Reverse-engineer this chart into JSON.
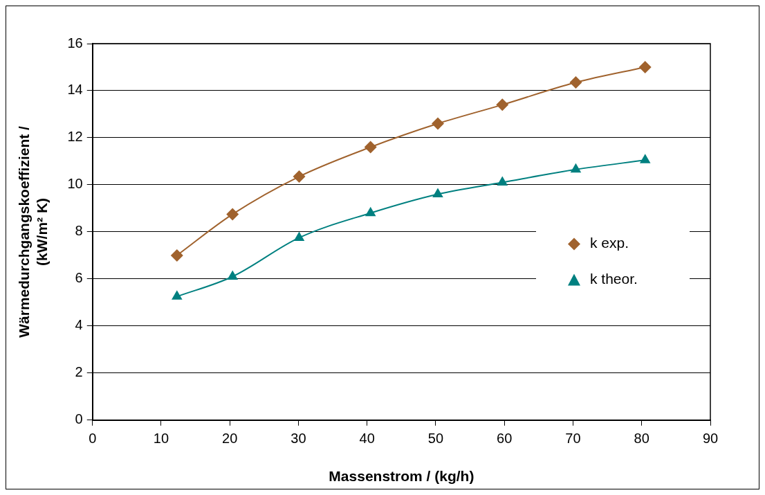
{
  "chart_data": {
    "type": "line",
    "xlabel": "Massenstrom / (kg/h)",
    "ylabel": "Wärmedurchgangskoeffizient / (kW/m² K)",
    "x": [
      12.3,
      20.4,
      30.1,
      40.5,
      50.3,
      59.7,
      70.4,
      80.5
    ],
    "series": [
      {
        "name": "k exp.",
        "color": "#a0622d",
        "marker": "diamond",
        "values": [
          7.0,
          8.75,
          10.35,
          11.6,
          12.6,
          13.4,
          14.35,
          15.0
        ]
      },
      {
        "name": "k theor.",
        "color": "#008080",
        "marker": "triangle",
        "values": [
          5.25,
          6.1,
          7.75,
          8.8,
          9.6,
          10.1,
          10.65,
          11.05
        ]
      }
    ],
    "xlim": [
      0,
      90
    ],
    "xticks": [
      0,
      10,
      20,
      30,
      40,
      50,
      60,
      70,
      80,
      90
    ],
    "ylim": [
      0,
      16
    ],
    "yticks": [
      0,
      2,
      4,
      6,
      8,
      10,
      12,
      14,
      16
    ],
    "grid": "y",
    "legend": "right",
    "line_style": "solid"
  }
}
